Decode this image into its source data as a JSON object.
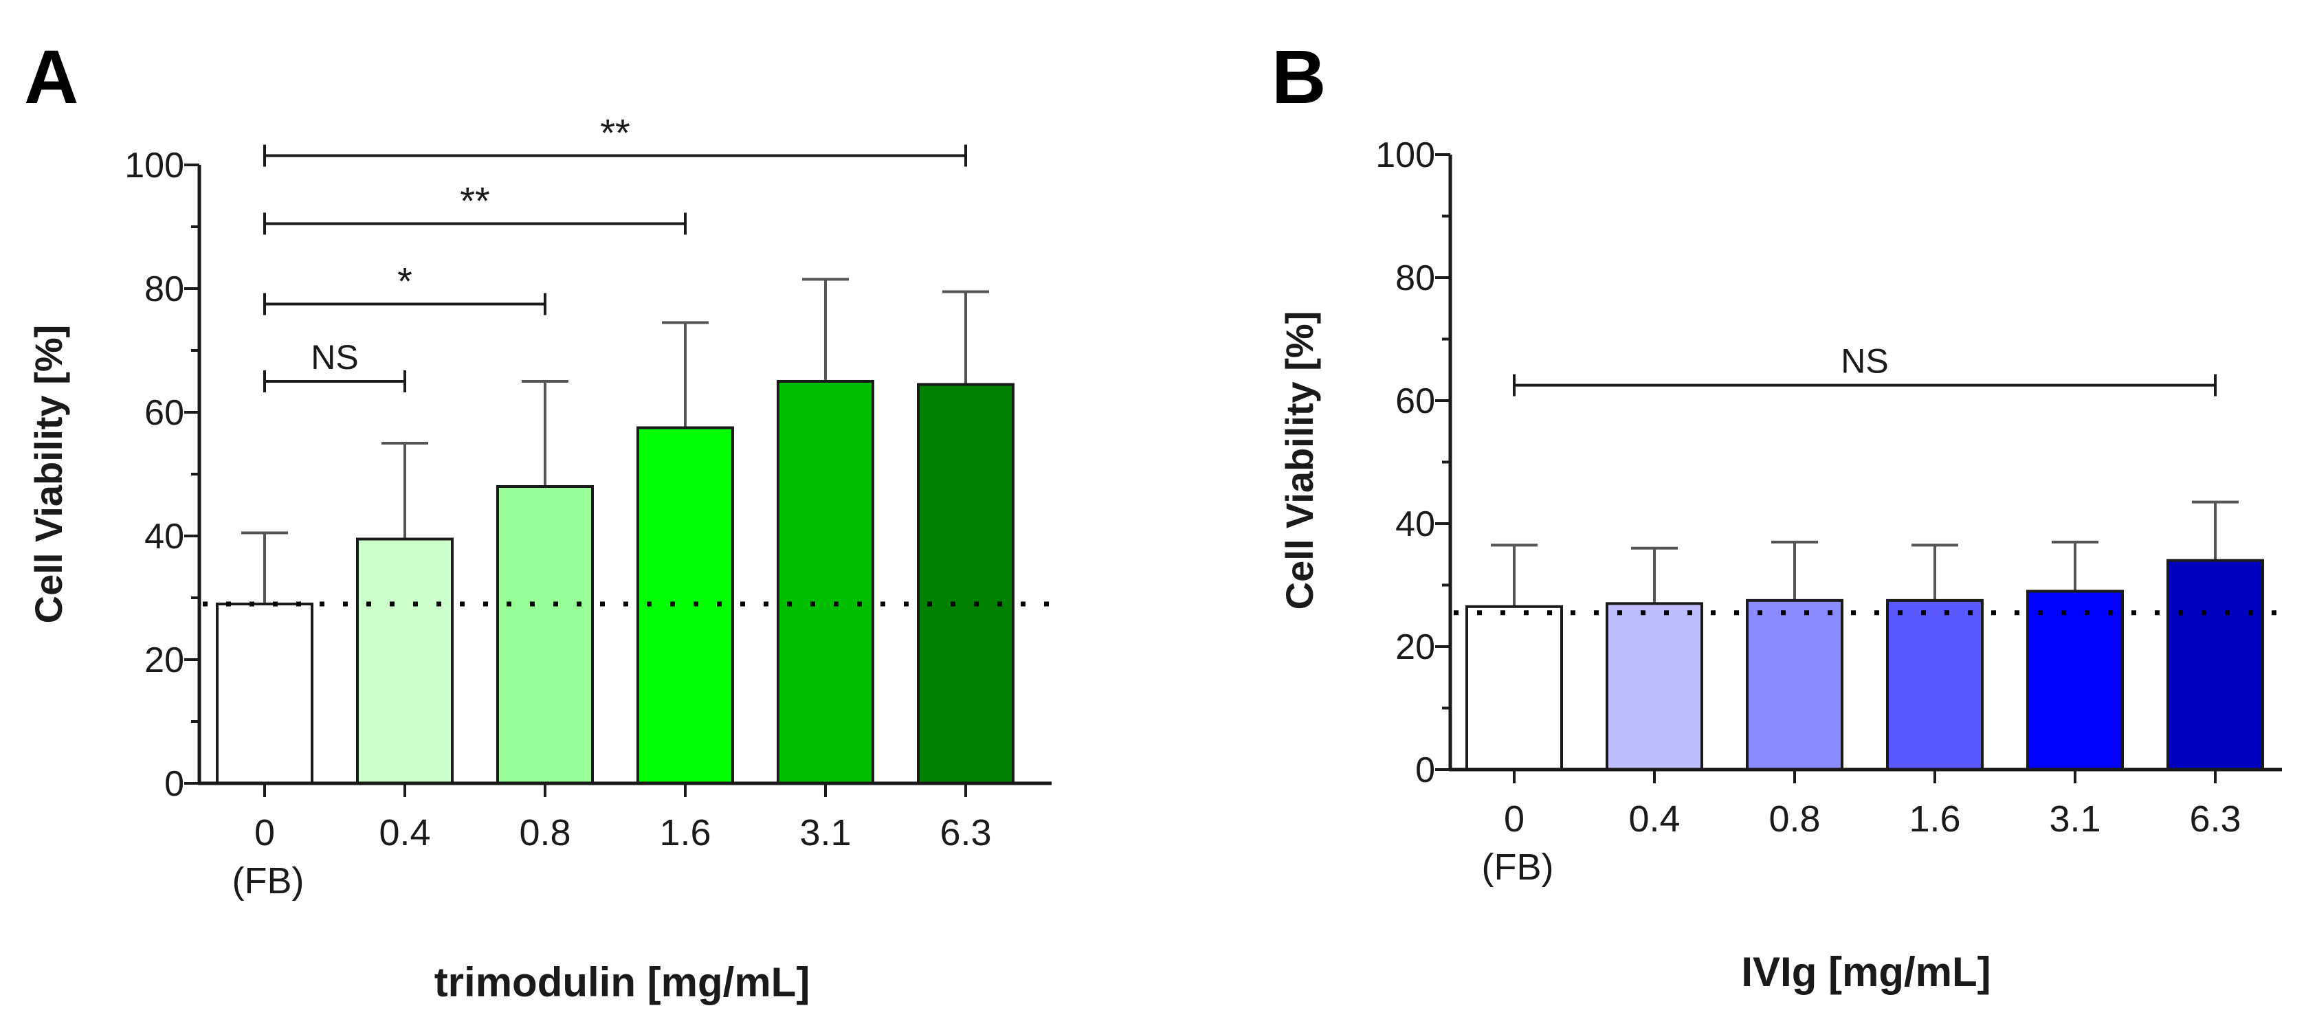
{
  "panels": [
    {
      "letter": "A"
    },
    {
      "letter": "B"
    }
  ],
  "chart_data": [
    {
      "type": "bar",
      "panel": "A",
      "categories": [
        "0",
        "0.4",
        "0.8",
        "1.6",
        "3.1",
        "6.3"
      ],
      "category_sublabels": [
        "(FB)",
        "",
        "",
        "",
        "",
        ""
      ],
      "values": [
        29,
        39.5,
        48,
        57.5,
        65,
        64.5
      ],
      "error_upper": [
        40.5,
        55,
        65,
        74.5,
        81.5,
        79.5
      ],
      "colors": [
        "#ffffff",
        "#ccffcc",
        "#99ff99",
        "#00ff00",
        "#00bf00",
        "#007f00"
      ],
      "xlabel": "trimodulin [mg/mL]",
      "ylabel": "Cell Viability [%]",
      "ylim": [
        0,
        100
      ],
      "yticks": [
        "0",
        "20",
        "40",
        "60",
        "80",
        "100"
      ],
      "reference_line": 29,
      "significance": [
        {
          "from": "0",
          "to": "0.4",
          "y": 65,
          "label": "NS"
        },
        {
          "from": "0",
          "to": "0.8",
          "y": 77.5,
          "label": "*"
        },
        {
          "from": "0",
          "to": "1.6",
          "y": 90.5,
          "label": "**"
        },
        {
          "from": "0",
          "to": "6.3",
          "y": 101.5,
          "label": "**"
        }
      ]
    },
    {
      "type": "bar",
      "panel": "B",
      "categories": [
        "0",
        "0.4",
        "0.8",
        "1.6",
        "3.1",
        "6.3"
      ],
      "category_sublabels": [
        "(FB)",
        "",
        "",
        "",
        "",
        ""
      ],
      "values": [
        26.5,
        27,
        27.5,
        27.5,
        29,
        34
      ],
      "error_upper": [
        36.5,
        36,
        37,
        36.5,
        37,
        43.5
      ],
      "colors": [
        "#ffffff",
        "#bfbfff",
        "#8c8cff",
        "#5959ff",
        "#0000ff",
        "#0000bf"
      ],
      "xlabel": "IVIg [mg/mL]",
      "ylabel": "Cell Viability [%]",
      "ylim": [
        0,
        100
      ],
      "yticks": [
        "0",
        "20",
        "40",
        "60",
        "80",
        "100"
      ],
      "reference_line": 25.5,
      "significance": [
        {
          "from": "0",
          "to": "6.3",
          "y": 62.5,
          "label": "NS"
        }
      ]
    }
  ]
}
